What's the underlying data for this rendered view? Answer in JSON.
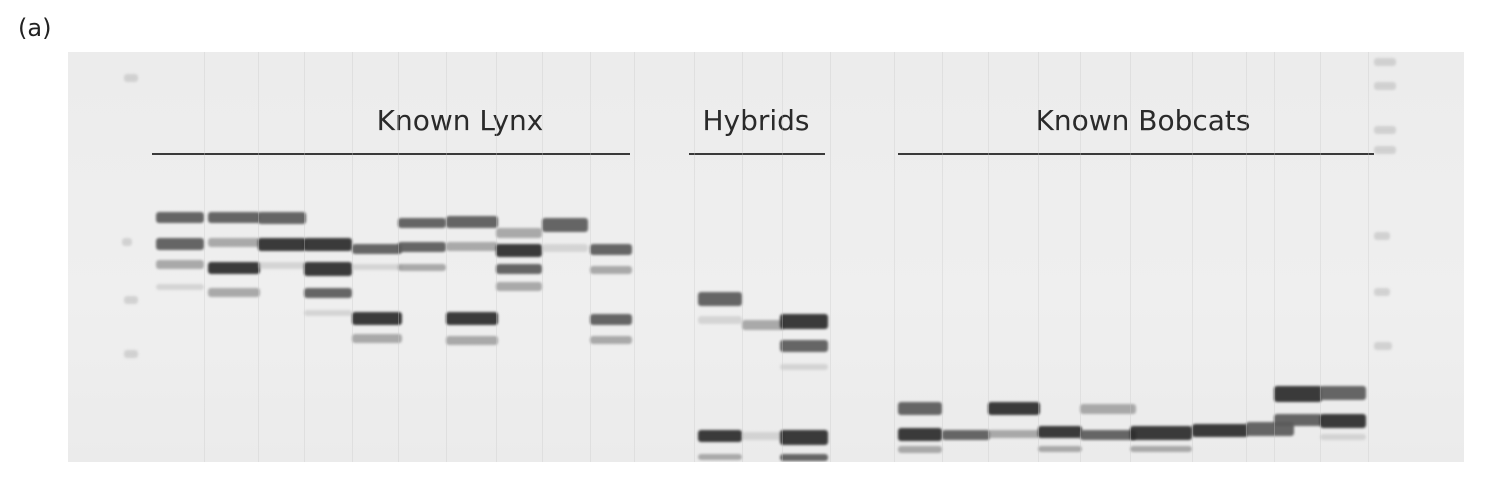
{
  "figure": {
    "panel_label": "(a)",
    "groups": {
      "lynx": "Known Lynx",
      "hybrids": "Hybrids",
      "bobcats": "Known Bobcats"
    }
  },
  "colors": {
    "dark": "#2b2b2b",
    "mid": "#5a5a5a",
    "light": "#8c8c8c",
    "faint": "#b5b5b5"
  }
}
